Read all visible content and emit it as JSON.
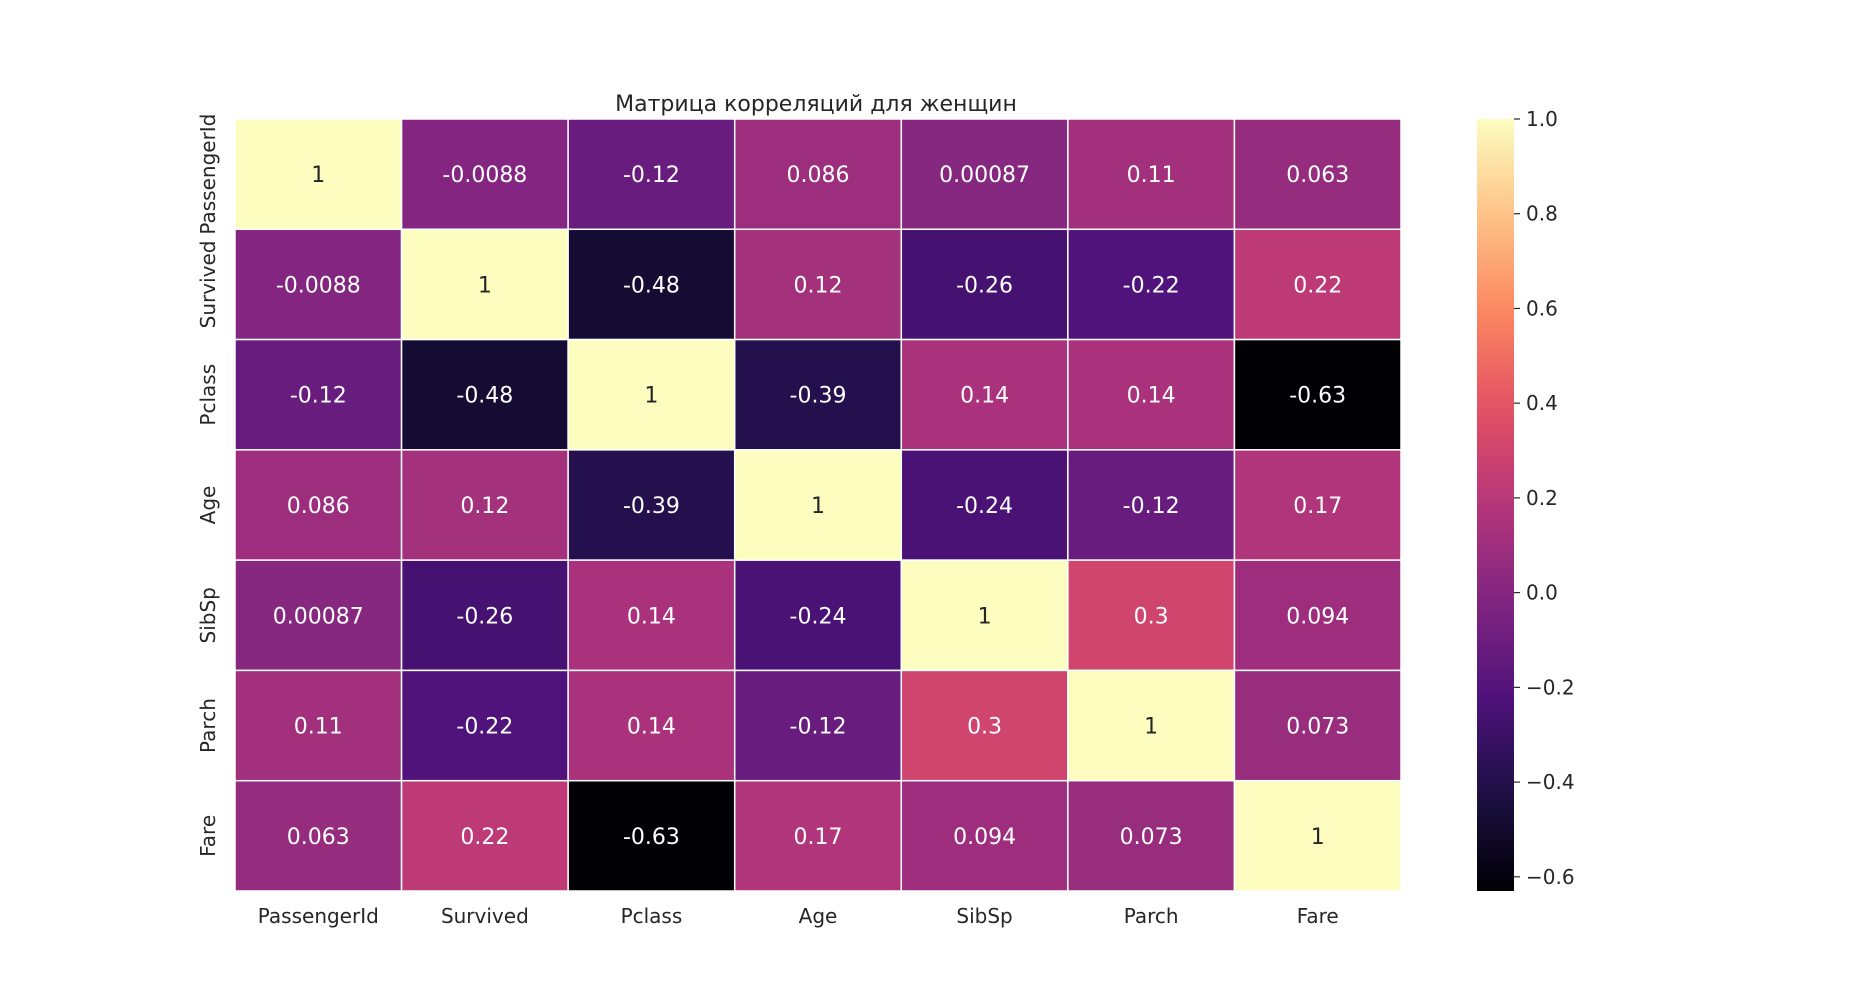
{
  "chart_data": {
    "type": "heatmap",
    "title": "Матрица корреляций для женщин",
    "xlabel": "",
    "ylabel": "",
    "x_categories": [
      "PassengerId",
      "Survived",
      "Pclass",
      "Age",
      "SibSp",
      "Parch",
      "Fare"
    ],
    "y_categories": [
      "PassengerId",
      "Survived",
      "Pclass",
      "Age",
      "SibSp",
      "Parch",
      "Fare"
    ],
    "values": [
      [
        1,
        -0.0088,
        -0.12,
        0.086,
        0.00087,
        0.11,
        0.063
      ],
      [
        -0.0088,
        1,
        -0.48,
        0.12,
        -0.26,
        -0.22,
        0.22
      ],
      [
        -0.12,
        -0.48,
        1,
        -0.39,
        0.14,
        0.14,
        -0.63
      ],
      [
        0.086,
        0.12,
        -0.39,
        1,
        -0.24,
        -0.12,
        0.17
      ],
      [
        0.00087,
        -0.26,
        0.14,
        -0.24,
        1,
        0.3,
        0.094
      ],
      [
        0.11,
        -0.22,
        0.14,
        -0.12,
        0.3,
        1,
        0.073
      ],
      [
        0.063,
        0.22,
        -0.63,
        0.17,
        0.094,
        0.073,
        1
      ]
    ],
    "annotations": [
      [
        "1",
        "-0.0088",
        "-0.12",
        "0.086",
        "0.00087",
        "0.11",
        "0.063"
      ],
      [
        "-0.0088",
        "1",
        "-0.48",
        "0.12",
        "-0.26",
        "-0.22",
        "0.22"
      ],
      [
        "-0.12",
        "-0.48",
        "1",
        "-0.39",
        "0.14",
        "0.14",
        "-0.63"
      ],
      [
        "0.086",
        "0.12",
        "-0.39",
        "1",
        "-0.24",
        "-0.12",
        "0.17"
      ],
      [
        "0.00087",
        "-0.26",
        "0.14",
        "-0.24",
        "1",
        "0.3",
        "0.094"
      ],
      [
        "0.11",
        "-0.22",
        "0.14",
        "-0.12",
        "0.3",
        "1",
        "0.073"
      ],
      [
        "0.063",
        "0.22",
        "-0.63",
        "0.17",
        "0.094",
        "0.073",
        "1"
      ]
    ],
    "colormap": "magma",
    "vmin": -0.63,
    "vmax": 1,
    "colorbar": {
      "ticks": [
        1.0,
        0.8,
        0.6,
        0.4,
        0.2,
        0.0,
        -0.2,
        -0.4,
        -0.6
      ],
      "tick_labels": [
        "1.0",
        "0.8",
        "0.6",
        "0.4",
        "0.2",
        "0.0",
        "−0.2",
        "−0.4",
        "−0.6"
      ]
    },
    "cell_line_color": "#ffffff",
    "annotation_dark_color": "#262626",
    "annotation_light_color": "#ffffff",
    "grid": false,
    "legend": "colorbar-right"
  }
}
